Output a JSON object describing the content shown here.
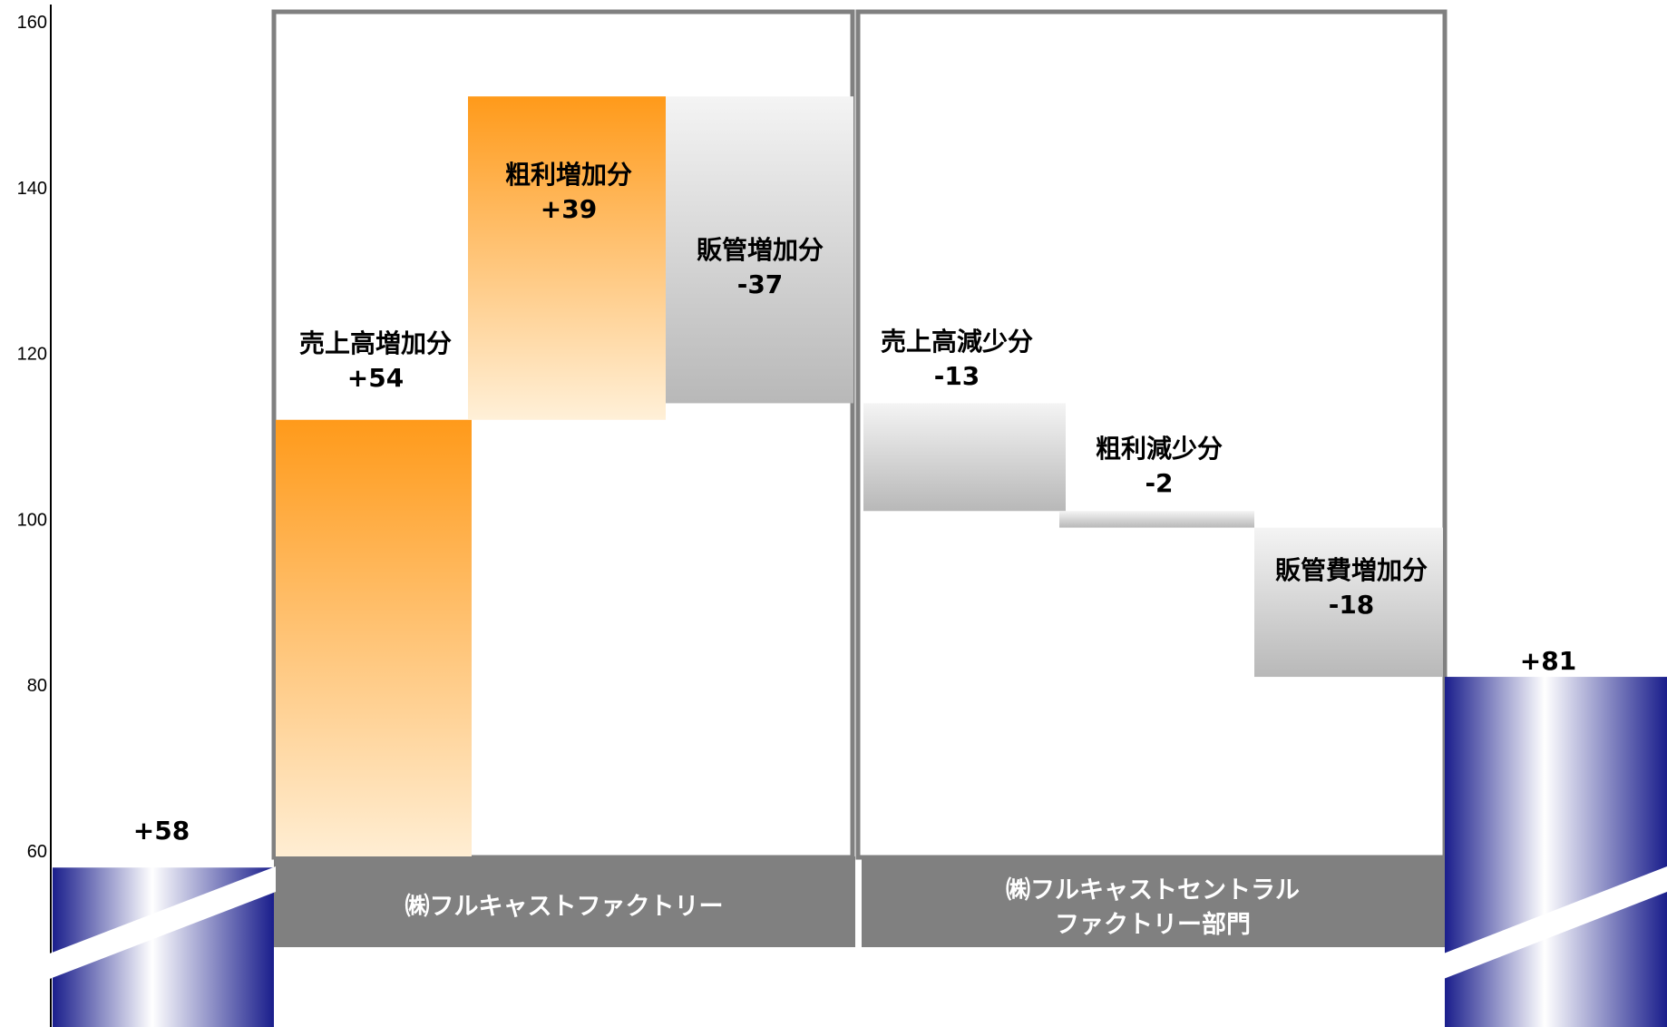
{
  "chart_data": {
    "type": "waterfall",
    "title": "",
    "xlabel": "",
    "ylabel": "",
    "ylim": [
      55,
      162
    ],
    "yticks": [
      60,
      80,
      100,
      120,
      140,
      160
    ],
    "grid": false,
    "bars": [
      {
        "kind": "total",
        "name": "",
        "label": "+58",
        "value": 58
      },
      {
        "kind": "delta",
        "name": "売上高増加分",
        "label": "+54",
        "start": 58,
        "end": 112
      },
      {
        "kind": "delta",
        "name": "粗利増加分",
        "label": "+39",
        "start": 112,
        "end": 151
      },
      {
        "kind": "delta",
        "name": "販管増加分",
        "label": "-37",
        "start": 151,
        "end": 114
      },
      {
        "kind": "delta",
        "name": "売上高減少分",
        "label": "-13",
        "start": 114,
        "end": 101
      },
      {
        "kind": "delta",
        "name": "粗利減少分",
        "label": "-2",
        "start": 101,
        "end": 99
      },
      {
        "kind": "delta",
        "name": "販管費増加分",
        "label": "-18",
        "start": 99,
        "end": 81
      },
      {
        "kind": "total",
        "name": "",
        "label": "+81",
        "value": 81
      }
    ],
    "segments": [
      {
        "label_lines": [
          "㈱フルキャストファクトリー"
        ]
      },
      {
        "label_lines": [
          "㈱フルキャストセントラル",
          "ファクトリー部門"
        ]
      }
    ],
    "colors": {
      "increase_top": "#ff9a1a",
      "increase_bottom": "#fff0d8",
      "decrease_top": "#f4f4f4",
      "decrease_bottom": "#b8b8b8",
      "total_dark": "#1a1e8c",
      "segment_fill": "#808080",
      "frame": "#808080"
    }
  }
}
